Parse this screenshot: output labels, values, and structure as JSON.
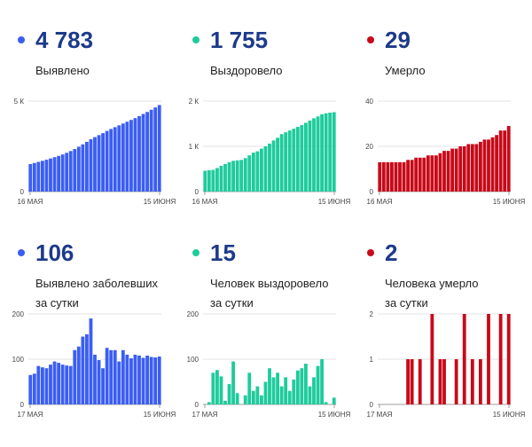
{
  "panels": [
    {
      "value": "4 783",
      "label_lines": [
        "Выявлено"
      ],
      "color": "#3b5ef2",
      "chart_data": {
        "type": "bar",
        "x_start_label": "16 МАЯ",
        "x_end_label": "15 ИЮНЯ",
        "yticks": [
          "0",
          "5 К"
        ],
        "ylim": [
          0,
          5000
        ],
        "values": [
          1520,
          1580,
          1640,
          1700,
          1760,
          1830,
          1900,
          1970,
          2050,
          2140,
          2240,
          2350,
          2480,
          2610,
          2750,
          2890,
          3010,
          3120,
          3230,
          3350,
          3460,
          3560,
          3660,
          3760,
          3860,
          3960,
          4060,
          4170,
          4290,
          4400,
          4520,
          4650,
          4783
        ]
      }
    },
    {
      "value": "1 755",
      "label_lines": [
        "Выздоровело"
      ],
      "color": "#1ecb9c",
      "chart_data": {
        "type": "bar",
        "x_start_label": "16 МАЯ",
        "x_end_label": "15 ИЮНЯ",
        "yticks": [
          "0",
          "1 К",
          "2 К"
        ],
        "ylim": [
          0,
          2000
        ],
        "values": [
          460,
          470,
          480,
          520,
          570,
          610,
          650,
          680,
          690,
          700,
          740,
          800,
          860,
          890,
          950,
          1000,
          1060,
          1130,
          1190,
          1270,
          1310,
          1350,
          1390,
          1430,
          1470,
          1520,
          1570,
          1620,
          1660,
          1710,
          1730,
          1745,
          1755
        ]
      }
    },
    {
      "value": "29",
      "label_lines": [
        "Умерло"
      ],
      "color": "#c80a19",
      "chart_data": {
        "type": "bar",
        "x_start_label": "16 МАЯ",
        "x_end_label": "15 ИЮНЯ",
        "yticks": [
          "0",
          "20",
          "40"
        ],
        "ylim": [
          0,
          40
        ],
        "values": [
          13,
          13,
          13,
          13,
          13,
          13,
          13,
          14,
          14,
          15,
          15,
          15,
          16,
          16,
          16,
          17,
          18,
          18,
          19,
          19,
          20,
          20,
          21,
          21,
          21,
          22,
          23,
          23,
          24,
          25,
          27,
          27,
          29
        ]
      }
    },
    {
      "value": "106",
      "label_lines": [
        "Выявлено заболевших",
        "за сутки"
      ],
      "color": "#3b5ef2",
      "chart_data": {
        "type": "bar",
        "x_start_label": "17 МАЯ",
        "x_end_label": "15 ИЮНЯ",
        "yticks": [
          "0",
          "100",
          "200"
        ],
        "ylim": [
          0,
          200
        ],
        "values": [
          65,
          68,
          85,
          82,
          80,
          88,
          95,
          92,
          88,
          86,
          85,
          120,
          128,
          150,
          155,
          190,
          110,
          98,
          80,
          125,
          120,
          120,
          95,
          120,
          110,
          102,
          110,
          108,
          103,
          108,
          105,
          104,
          106
        ]
      }
    },
    {
      "value": "15",
      "label_lines": [
        "Человек выздоровело",
        "за сутки"
      ],
      "color": "#1ecb9c",
      "chart_data": {
        "type": "bar",
        "x_start_label": "17 МАЯ",
        "x_end_label": "15 ИЮНЯ",
        "yticks": [
          "0",
          "100",
          "200"
        ],
        "ylim": [
          0,
          200
        ],
        "values": [
          0,
          5,
          70,
          76,
          62,
          8,
          45,
          95,
          25,
          0,
          20,
          70,
          30,
          40,
          20,
          50,
          80,
          60,
          70,
          40,
          60,
          30,
          55,
          75,
          80,
          90,
          40,
          60,
          85,
          100,
          5,
          0,
          15
        ]
      }
    },
    {
      "value": "2",
      "label_lines": [
        "Человека умерло",
        "за сутки"
      ],
      "color": "#c80a19",
      "chart_data": {
        "type": "bar",
        "x_start_label": "17 МАЯ",
        "x_end_label": "15 ИЮНЯ",
        "yticks": [
          "0",
          "1",
          "2"
        ],
        "ylim": [
          0,
          2
        ],
        "values": [
          0,
          0,
          0,
          0,
          0,
          0,
          0,
          1,
          1,
          0,
          1,
          0,
          0,
          2,
          0,
          1,
          1,
          0,
          0,
          1,
          0,
          2,
          0,
          1,
          0,
          1,
          0,
          2,
          0,
          0,
          2,
          0,
          2
        ]
      }
    }
  ]
}
